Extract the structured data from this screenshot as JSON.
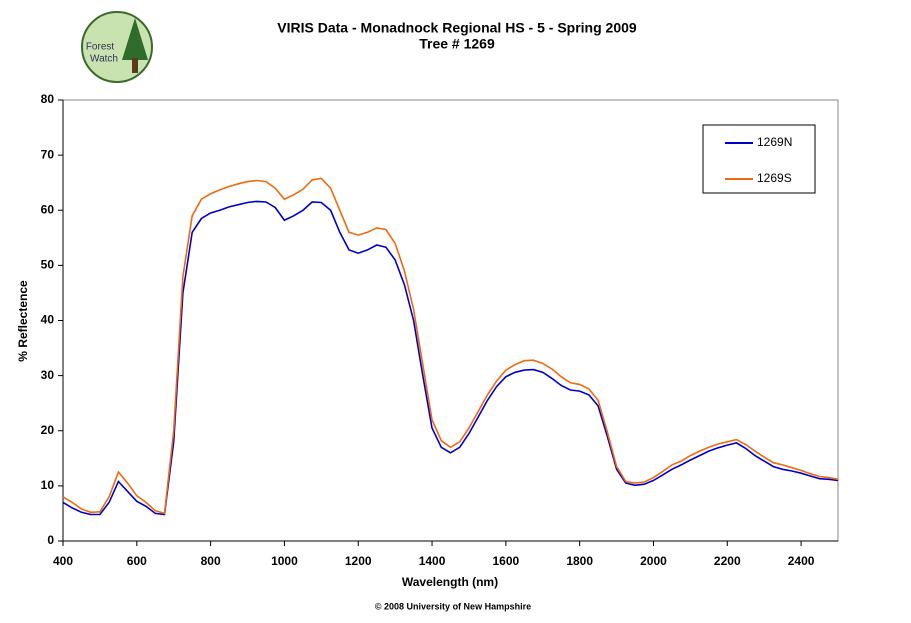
{
  "chart_data": {
    "type": "line",
    "title": "VIRIS Data - Monadnock Regional HS - 5 - Spring 2009",
    "subtitle": "Tree # 1269",
    "logo_lines": [
      "Forest",
      "Watch"
    ],
    "x_label": "Wavelength (nm)",
    "y_label": "% Reflectence",
    "footer": "© 2008 University of New Hampshire",
    "xlim": [
      400,
      2500
    ],
    "ylim": [
      0,
      80
    ],
    "xticks": [
      400,
      600,
      800,
      1000,
      1200,
      1400,
      1600,
      1800,
      2000,
      2200,
      2400
    ],
    "yticks": [
      0,
      10,
      20,
      30,
      40,
      50,
      60,
      70,
      80
    ],
    "grid": false,
    "legend": "upper right",
    "x": [
      400,
      425,
      450,
      475,
      500,
      525,
      550,
      575,
      600,
      625,
      650,
      675,
      700,
      725,
      750,
      775,
      800,
      825,
      850,
      875,
      900,
      925,
      950,
      975,
      1000,
      1025,
      1050,
      1075,
      1100,
      1125,
      1150,
      1175,
      1200,
      1225,
      1250,
      1275,
      1300,
      1325,
      1350,
      1375,
      1400,
      1425,
      1450,
      1475,
      1500,
      1525,
      1550,
      1575,
      1600,
      1625,
      1650,
      1675,
      1700,
      1725,
      1750,
      1775,
      1800,
      1825,
      1850,
      1875,
      1900,
      1925,
      1950,
      1975,
      2000,
      2025,
      2050,
      2075,
      2100,
      2125,
      2150,
      2175,
      2200,
      2225,
      2250,
      2275,
      2300,
      2325,
      2350,
      2375,
      2400,
      2425,
      2450,
      2475,
      2500
    ],
    "series": [
      {
        "name": "1269N",
        "color": "#0000cc",
        "values": [
          7,
          6,
          5.2,
          4.8,
          4.8,
          7,
          10.8,
          9,
          7.2,
          6.3,
          5,
          4.8,
          18,
          45,
          56,
          58.5,
          59.5,
          60,
          60.6,
          61,
          61.4,
          61.6,
          61.5,
          60.5,
          58.2,
          59,
          60,
          61.5,
          61.4,
          60,
          56,
          52.8,
          52.2,
          52.8,
          53.7,
          53.3,
          51,
          46.5,
          40,
          30,
          20.5,
          17,
          16,
          17,
          19.5,
          22.5,
          25.5,
          28,
          29.8,
          30.6,
          31,
          31.1,
          30.6,
          29.5,
          28.2,
          27.4,
          27.2,
          26.5,
          24.5,
          19,
          13,
          10.5,
          10.1,
          10.3,
          11,
          12,
          13,
          13.8,
          14.7,
          15.5,
          16.3,
          16.9,
          17.4,
          17.8,
          16.8,
          15.5,
          14.5,
          13.5,
          13,
          12.7,
          12.3,
          11.8,
          11.3,
          11.2,
          11
        ]
      },
      {
        "name": "1269S",
        "color": "#ee6a10",
        "values": [
          8,
          7,
          5.8,
          5.2,
          5.3,
          8,
          12.5,
          10.5,
          8.2,
          7,
          5.5,
          5,
          20,
          48,
          59,
          62,
          63,
          63.7,
          64.3,
          64.8,
          65.2,
          65.4,
          65.2,
          64,
          62,
          62.8,
          63.8,
          65.5,
          65.8,
          64,
          60,
          56,
          55.5,
          56,
          56.8,
          56.5,
          54,
          49,
          42,
          32,
          22,
          18.2,
          17,
          18,
          20.5,
          23.5,
          26.5,
          29,
          31,
          32,
          32.7,
          32.8,
          32.2,
          31.2,
          29.8,
          28.7,
          28.4,
          27.6,
          25.5,
          19.8,
          13.5,
          10.8,
          10.5,
          10.7,
          11.5,
          12.6,
          13.8,
          14.5,
          15.5,
          16.3,
          17,
          17.6,
          18,
          18.4,
          17.5,
          16.3,
          15.2,
          14.2,
          13.8,
          13.3,
          12.8,
          12.2,
          11.7,
          11.5,
          11.2
        ]
      }
    ]
  }
}
